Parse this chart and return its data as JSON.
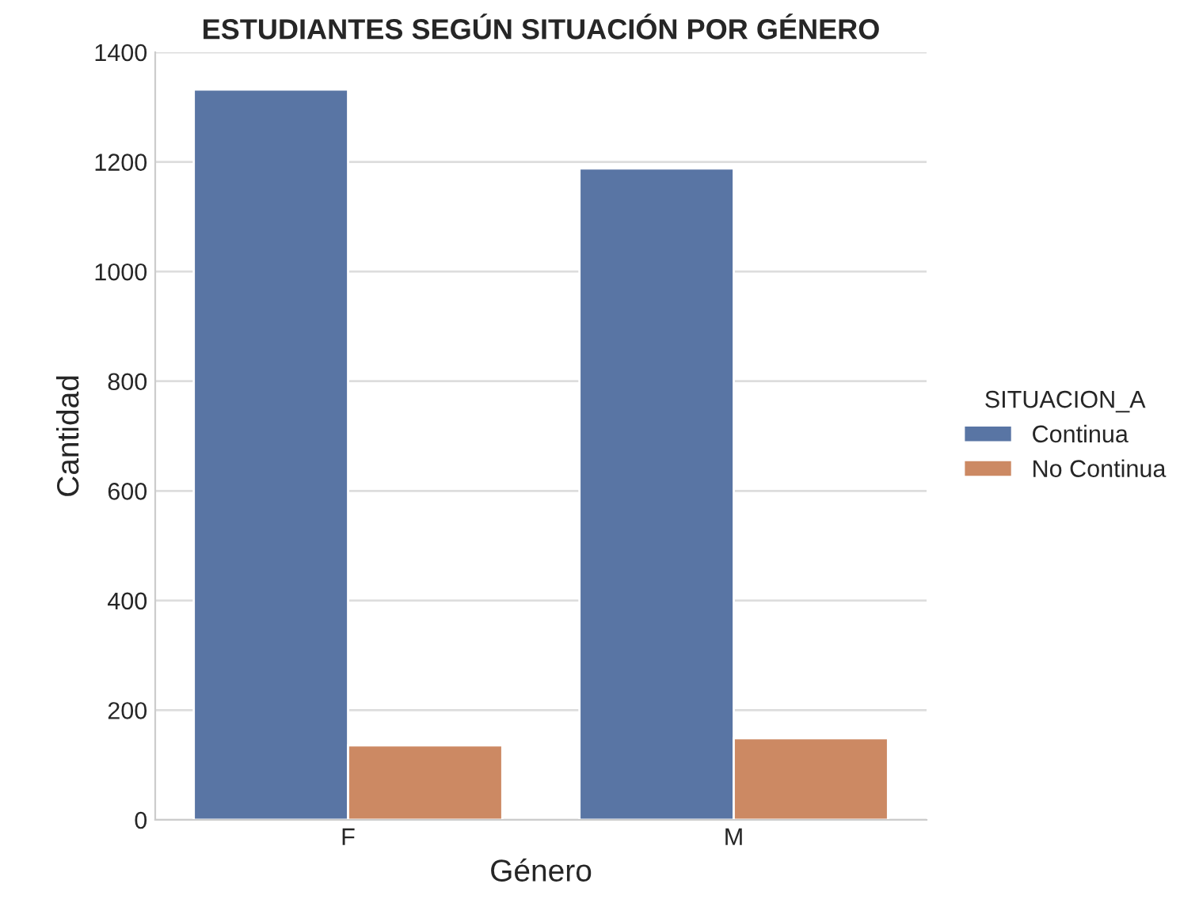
{
  "chart_data": {
    "type": "bar",
    "title": "ESTUDIANTES SEGÚN SITUACIÓN POR GÉNERO",
    "xlabel": "Género",
    "ylabel": "Cantidad",
    "legend_title": "SITUACION_A",
    "categories": [
      "F",
      "M"
    ],
    "series": [
      {
        "name": "Continua",
        "color": "#5975a4",
        "values": [
          1332,
          1188
        ]
      },
      {
        "name": "No Continua",
        "color": "#cc8963",
        "values": [
          136,
          149
        ]
      }
    ],
    "ylim": [
      0,
      1400
    ],
    "yticks": [
      0,
      200,
      400,
      600,
      800,
      1000,
      1200,
      1400
    ],
    "grid": "y",
    "legend": "right"
  }
}
